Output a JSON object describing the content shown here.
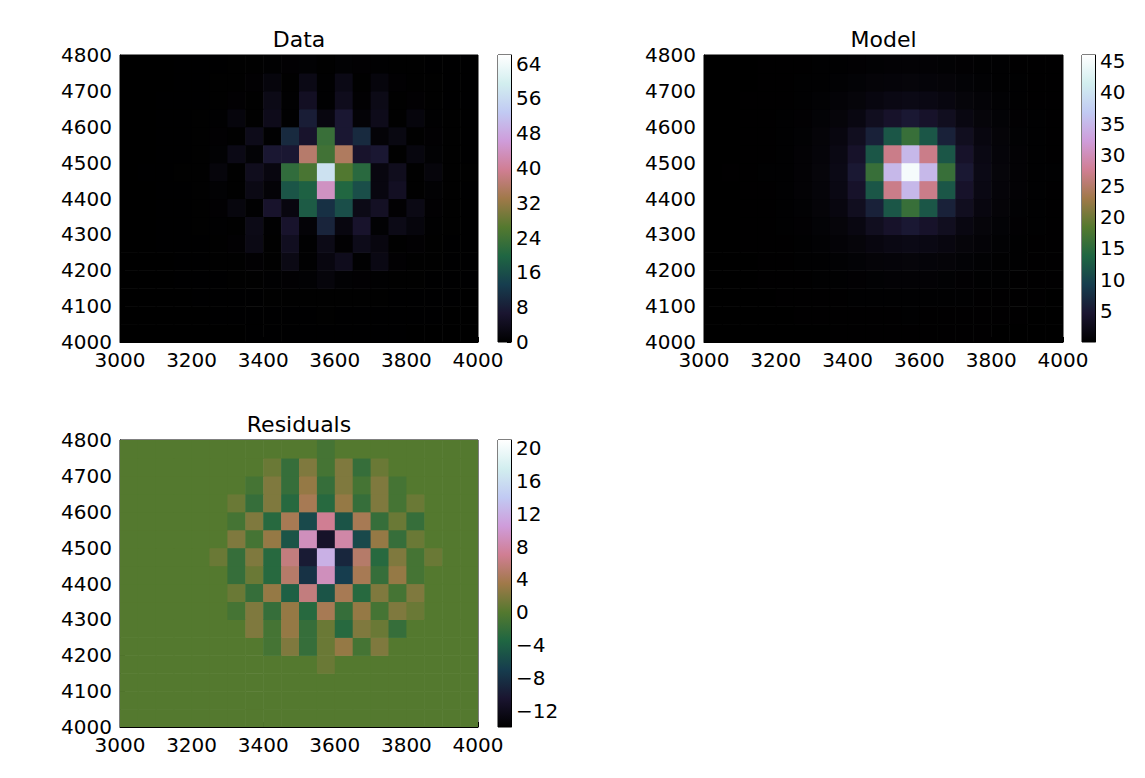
{
  "chart_data": [
    {
      "type": "heatmap",
      "title": "Data",
      "xlim": [
        3000,
        4000
      ],
      "ylim": [
        4000,
        4800
      ],
      "xticks": [
        3000,
        3200,
        3400,
        3600,
        3800,
        4000
      ],
      "yticks": [
        4000,
        4100,
        4200,
        4300,
        4400,
        4500,
        4600,
        4700,
        4800
      ],
      "x_edges": [
        3000,
        3050,
        3100,
        3150,
        3200,
        3250,
        3300,
        3350,
        3400,
        3450,
        3500,
        3550,
        3600,
        3650,
        3700,
        3750,
        3800,
        3850,
        3900,
        3950,
        4000
      ],
      "y_edges": [
        4000,
        4050,
        4100,
        4150,
        4200,
        4250,
        4300,
        4350,
        4400,
        4450,
        4500,
        4550,
        4600,
        4650,
        4700,
        4750,
        4800
      ],
      "cells": [
        [
          0,
          0,
          0,
          0,
          0,
          0,
          0,
          0.1,
          0.1,
          0.1,
          0.1,
          0.1,
          0.1,
          0.1,
          0.1,
          0.1,
          0,
          0,
          0,
          0
        ],
        [
          0,
          0,
          0,
          0,
          0,
          0.1,
          0.1,
          0.1,
          0.1,
          0.1,
          0.1,
          0.2,
          0.1,
          0.1,
          0.1,
          0.1,
          0.1,
          0.1,
          0,
          0
        ],
        [
          0,
          0,
          0,
          0,
          0.1,
          0.1,
          0.1,
          0.1,
          0.2,
          0.2,
          0.2,
          0.2,
          0.2,
          0.2,
          0.2,
          0.1,
          0.1,
          0.1,
          0.1,
          0
        ],
        [
          0,
          0,
          0,
          0.1,
          0.1,
          0.1,
          0.2,
          0.2,
          0.3,
          0.4,
          0.5,
          1.5,
          0.5,
          0.4,
          0.3,
          0.2,
          0.2,
          0.1,
          0.1,
          0.1
        ],
        [
          0,
          0,
          0,
          0.1,
          0.1,
          0.2,
          0.2,
          0.4,
          0.2,
          2.8,
          0.3,
          2,
          3.9,
          0.3,
          2.6,
          0.4,
          0.2,
          0.2,
          0.1,
          0.1
        ],
        [
          0,
          0,
          0.1,
          0.1,
          0.1,
          0.2,
          0.4,
          2.7,
          0.2,
          4.4,
          0.3,
          3,
          0.4,
          3.4,
          2,
          0.2,
          0.4,
          0.2,
          0.1,
          0.1
        ],
        [
          0,
          0,
          0.1,
          0.1,
          0.2,
          0.3,
          0.2,
          3,
          0.3,
          6,
          1,
          9,
          2,
          6,
          0.6,
          3,
          1.6,
          0.3,
          0.2,
          0.1
        ],
        [
          0,
          0,
          0.1,
          0.1,
          0.2,
          0.4,
          1.8,
          0.3,
          6,
          2,
          18,
          11,
          16,
          3,
          5,
          0.4,
          2.8,
          0.4,
          0.2,
          0.1
        ],
        [
          0,
          0,
          0.1,
          0.1,
          0.2,
          0.5,
          0.2,
          2.8,
          1,
          17,
          19,
          44,
          20,
          16,
          2,
          4.8,
          0.2,
          0.5,
          0.2,
          0.1
        ],
        [
          0,
          0.1,
          0.1,
          0.2,
          0.2,
          1.5,
          0.2,
          4,
          2,
          22,
          25,
          57,
          26,
          21,
          2,
          4,
          0.2,
          1.5,
          0.2,
          0.2
        ],
        [
          0,
          0,
          0.1,
          0.1,
          0.2,
          0.5,
          2.9,
          0.8,
          7,
          7,
          36,
          24,
          35,
          6,
          7,
          0.2,
          1.9,
          0.5,
          0.2,
          0.1
        ],
        [
          0,
          0,
          0.1,
          0.1,
          0.2,
          0.4,
          0.2,
          3.4,
          0.3,
          10,
          6,
          23,
          7,
          10,
          1,
          2.4,
          0.2,
          0.4,
          0.2,
          0.1
        ],
        [
          0,
          0,
          0.1,
          0.1,
          0.2,
          0.3,
          1.6,
          0.2,
          3.6,
          0.3,
          8,
          2,
          7,
          1,
          3.6,
          0.2,
          1.6,
          0.3,
          0.2,
          0.1
        ],
        [
          0,
          0,
          0.1,
          0.1,
          0.1,
          0.2,
          0.4,
          0.2,
          3,
          0.3,
          4.8,
          0.3,
          3.8,
          0.4,
          3,
          0.2,
          0.4,
          0.2,
          0.1,
          0.1
        ],
        [
          0,
          0,
          0,
          0.1,
          0.1,
          0.2,
          0.2,
          0.4,
          1.6,
          0.2,
          2.9,
          0.3,
          2.9,
          0.2,
          1.6,
          0.4,
          0.2,
          0.2,
          0.1,
          0.1
        ],
        [
          0,
          0,
          0,
          0.1,
          0.1,
          0.1,
          0.2,
          0.2,
          0.3,
          0.4,
          0.5,
          0.2,
          0.5,
          0.4,
          0.3,
          0.2,
          0.2,
          0.1,
          0.1,
          0.1
        ]
      ],
      "colorbar_range": [
        0,
        66
      ],
      "colorbar_ticks": [
        0,
        8,
        16,
        24,
        32,
        40,
        48,
        56,
        64
      ]
    },
    {
      "type": "heatmap",
      "title": "Model",
      "xlim": [
        3000,
        4000
      ],
      "ylim": [
        4000,
        4800
      ],
      "xticks": [
        3000,
        3200,
        3400,
        3600,
        3800,
        4000
      ],
      "yticks": [
        4000,
        4100,
        4200,
        4300,
        4400,
        4500,
        4600,
        4700,
        4800
      ],
      "x_edges": [
        3000,
        3050,
        3100,
        3150,
        3200,
        3250,
        3300,
        3350,
        3400,
        3450,
        3500,
        3550,
        3600,
        3650,
        3700,
        3750,
        3800,
        3850,
        3900,
        3950,
        4000
      ],
      "y_edges": [
        4000,
        4050,
        4100,
        4150,
        4200,
        4250,
        4300,
        4350,
        4400,
        4450,
        4500,
        4550,
        4600,
        4650,
        4700,
        4750,
        4800
      ],
      "cells": [
        [
          0,
          0,
          0,
          0,
          0,
          0,
          0,
          0.1,
          0.1,
          0.1,
          0.1,
          0.1,
          0.1,
          0.1,
          0.1,
          0.1,
          0,
          0,
          0,
          0
        ],
        [
          0,
          0,
          0,
          0,
          0,
          0.1,
          0.1,
          0.1,
          0.1,
          0.1,
          0.1,
          0.2,
          0.1,
          0.1,
          0.1,
          0.1,
          0.1,
          0.1,
          0,
          0
        ],
        [
          0,
          0,
          0,
          0,
          0.1,
          0.1,
          0.1,
          0.1,
          0.2,
          0.2,
          0.2,
          0.2,
          0.2,
          0.2,
          0.2,
          0.1,
          0.1,
          0.1,
          0.1,
          0
        ],
        [
          0,
          0,
          0,
          0.1,
          0.1,
          0.1,
          0.2,
          0.2,
          0.3,
          0.4,
          0.5,
          0.5,
          0.5,
          0.4,
          0.3,
          0.2,
          0.2,
          0.1,
          0.1,
          0.1
        ],
        [
          0,
          0,
          0,
          0.1,
          0.1,
          0.2,
          0.2,
          0.4,
          0.6,
          0.8,
          0.9,
          1,
          0.9,
          0.8,
          0.6,
          0.4,
          0.2,
          0.2,
          0.1,
          0.1
        ],
        [
          0,
          0,
          0.1,
          0.1,
          0.1,
          0.2,
          0.4,
          0.7,
          1,
          1.4,
          1.8,
          2,
          1.8,
          1.4,
          1,
          0.7,
          0.4,
          0.2,
          0.1,
          0.1
        ],
        [
          0,
          0,
          0.1,
          0.1,
          0.2,
          0.3,
          0.6,
          1,
          1.6,
          3,
          4,
          5,
          4,
          3,
          1.6,
          1,
          0.6,
          0.3,
          0.2,
          0.1
        ],
        [
          0,
          0,
          0.1,
          0.1,
          0.2,
          0.4,
          0.8,
          1.4,
          3,
          6,
          12,
          16,
          12,
          6,
          3,
          1.4,
          0.8,
          0.4,
          0.2,
          0.1
        ],
        [
          0,
          0,
          0.1,
          0.1,
          0.2,
          0.5,
          0.9,
          1.8,
          4,
          12,
          27,
          35,
          27,
          12,
          4,
          1.8,
          0.9,
          0.5,
          0.2,
          0.1
        ],
        [
          0,
          0.1,
          0.1,
          0.2,
          0.2,
          0.5,
          1,
          2,
          5,
          16,
          35,
          45,
          35,
          16,
          5,
          2,
          1,
          0.5,
          0.2,
          0.2
        ],
        [
          0,
          0,
          0.1,
          0.1,
          0.2,
          0.5,
          0.9,
          1.8,
          4,
          12,
          27,
          35,
          27,
          12,
          4,
          1.8,
          0.9,
          0.5,
          0.2,
          0.1
        ],
        [
          0,
          0,
          0.1,
          0.1,
          0.2,
          0.4,
          0.8,
          1.4,
          3,
          6,
          12,
          16,
          12,
          6,
          3,
          1.4,
          0.8,
          0.4,
          0.2,
          0.1
        ],
        [
          0,
          0,
          0.1,
          0.1,
          0.2,
          0.3,
          0.6,
          1,
          1.6,
          3,
          4,
          5,
          4,
          3,
          1.6,
          1,
          0.6,
          0.3,
          0.2,
          0.1
        ],
        [
          0,
          0,
          0.1,
          0.1,
          0.1,
          0.2,
          0.4,
          0.7,
          1,
          1.4,
          1.8,
          2,
          1.8,
          1.4,
          1,
          0.7,
          0.4,
          0.2,
          0.1,
          0.1
        ],
        [
          0,
          0,
          0,
          0.1,
          0.1,
          0.2,
          0.2,
          0.4,
          0.6,
          0.8,
          0.9,
          1,
          0.9,
          0.8,
          0.6,
          0.4,
          0.2,
          0.2,
          0.1,
          0.1
        ],
        [
          0,
          0,
          0,
          0.1,
          0.1,
          0.1,
          0.2,
          0.2,
          0.3,
          0.4,
          0.5,
          0.5,
          0.5,
          0.4,
          0.3,
          0.2,
          0.2,
          0.1,
          0.1,
          0.1
        ]
      ],
      "colorbar_range": [
        0,
        46
      ],
      "colorbar_ticks": [
        5,
        10,
        15,
        20,
        25,
        30,
        35,
        40,
        45
      ]
    },
    {
      "type": "heatmap",
      "title": "Residuals",
      "xlim": [
        3000,
        4000
      ],
      "ylim": [
        4000,
        4800
      ],
      "xticks": [
        3000,
        3200,
        3400,
        3600,
        3800,
        4000
      ],
      "yticks": [
        4000,
        4100,
        4200,
        4300,
        4400,
        4500,
        4600,
        4700,
        4800
      ],
      "x_edges": [
        3000,
        3050,
        3100,
        3150,
        3200,
        3250,
        3300,
        3350,
        3400,
        3450,
        3500,
        3550,
        3600,
        3650,
        3700,
        3750,
        3800,
        3850,
        3900,
        3950,
        4000
      ],
      "y_edges": [
        4000,
        4050,
        4100,
        4150,
        4200,
        4250,
        4300,
        4350,
        4400,
        4450,
        4500,
        4550,
        4600,
        4650,
        4700,
        4750,
        4800
      ],
      "cells": [
        [
          0,
          0,
          0,
          0,
          0,
          0,
          0,
          0,
          0,
          0,
          0,
          0,
          0,
          0,
          0,
          0,
          0,
          0,
          0,
          0
        ],
        [
          0,
          0,
          0,
          0,
          0,
          0,
          0,
          0,
          0,
          0,
          0,
          0,
          0,
          0,
          0,
          0,
          0,
          0,
          0,
          0
        ],
        [
          0,
          0,
          0,
          0,
          0,
          0,
          0,
          0,
          0,
          0,
          0,
          0,
          0,
          0,
          0,
          0,
          0,
          0,
          0,
          0
        ],
        [
          0,
          0,
          0,
          0,
          0,
          0,
          0,
          0,
          0,
          0,
          0,
          1,
          0,
          0,
          0,
          0,
          0,
          0,
          0,
          0
        ],
        [
          0,
          0,
          0,
          0,
          0,
          0,
          0,
          0,
          -1,
          2,
          -2,
          1,
          3,
          -1,
          2,
          0,
          0,
          0,
          0,
          0
        ],
        [
          0,
          0,
          0,
          0,
          0,
          0,
          0,
          2,
          -1,
          3,
          -2,
          1,
          -3,
          2,
          1,
          -2,
          0,
          0,
          0,
          0
        ],
        [
          0,
          0,
          0,
          0,
          0,
          0,
          -1,
          2,
          -2,
          3,
          -3,
          4,
          -2,
          3,
          -1,
          2,
          1,
          0,
          0,
          0
        ],
        [
          0,
          0,
          0,
          0,
          0,
          0,
          1,
          -2,
          3,
          -4,
          6,
          -5,
          4,
          -3,
          2,
          -1,
          2,
          0,
          0,
          0
        ],
        [
          0,
          0,
          0,
          0,
          0,
          0,
          -2,
          1,
          -3,
          5,
          -8,
          9,
          -7,
          4,
          -2,
          3,
          -1,
          0,
          0,
          0
        ],
        [
          0,
          0,
          0,
          0,
          0,
          1,
          -2,
          2,
          -3,
          6,
          -10,
          12,
          -9,
          5,
          -3,
          2,
          -1,
          1,
          0,
          0
        ],
        [
          0,
          0,
          0,
          0,
          0,
          0,
          2,
          -1,
          3,
          -5,
          9,
          -11,
          8,
          -6,
          3,
          -2,
          1,
          0,
          0,
          0
        ],
        [
          0,
          0,
          0,
          0,
          0,
          0,
          -1,
          2,
          -3,
          4,
          -6,
          7,
          -5,
          4,
          -2,
          1,
          -2,
          0,
          0,
          0
        ],
        [
          0,
          0,
          0,
          0,
          0,
          0,
          1,
          -2,
          2,
          -3,
          4,
          -3,
          3,
          -2,
          2,
          -1,
          1,
          0,
          0,
          0
        ],
        [
          0,
          0,
          0,
          0,
          0,
          0,
          0,
          -1,
          2,
          -2,
          3,
          -2,
          2,
          -1,
          2,
          -1,
          0,
          0,
          0,
          0
        ],
        [
          0,
          0,
          0,
          0,
          0,
          0,
          0,
          0,
          1,
          -2,
          2,
          -1,
          2,
          -2,
          1,
          0,
          0,
          0,
          0,
          0
        ],
        [
          0,
          0,
          0,
          0,
          0,
          0,
          0,
          0,
          0,
          0,
          0,
          -1,
          0,
          0,
          0,
          0,
          0,
          0,
          0,
          0
        ]
      ],
      "colorbar_range": [
        -14,
        21
      ],
      "colorbar_ticks": [
        {
          "value": -12,
          "label": "−12"
        },
        {
          "value": -8,
          "label": "−8"
        },
        {
          "value": -4,
          "label": "−4"
        },
        0,
        4,
        8,
        12,
        16,
        20
      ]
    }
  ]
}
